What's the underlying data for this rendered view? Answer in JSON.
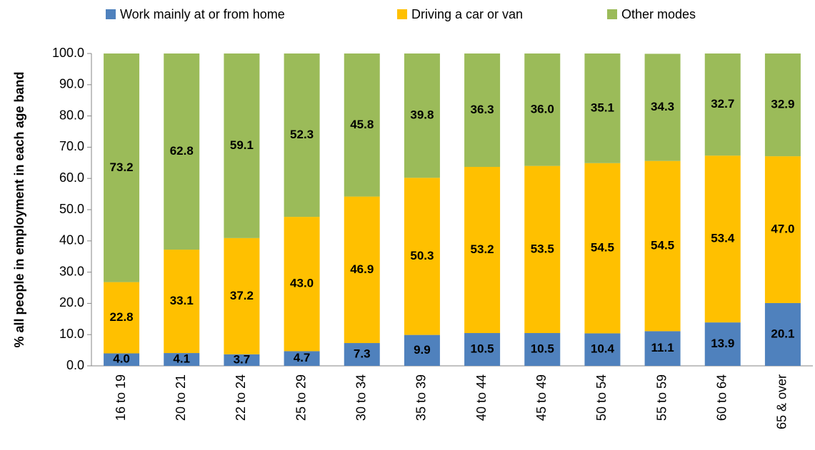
{
  "chart_data": {
    "type": "stacked_bar",
    "y_label": "% all people in employment in each age band",
    "categories": [
      "16 to 19",
      "20 to 21",
      "22 to 24",
      "25 to 29",
      "30 to 34",
      "35 to 39",
      "40 to 44",
      "45 to 49",
      "50 to 54",
      "55 to 59",
      "60 to 64",
      "65 & over"
    ],
    "series": [
      {
        "name": "Work mainly at or from home",
        "color": "#4f81bd",
        "values": [
          4.0,
          4.1,
          3.7,
          4.7,
          7.3,
          9.9,
          10.5,
          10.5,
          10.4,
          11.1,
          13.9,
          20.1
        ],
        "value_labels": [
          "4.0",
          "4.1",
          "3.7",
          "4.7",
          "7.3",
          "9.9",
          "10.5",
          "10.5",
          "10.4",
          "11.1",
          "13.9",
          "20.1"
        ]
      },
      {
        "name": "Driving a car or van",
        "color": "#ffc000",
        "values": [
          22.8,
          33.1,
          37.2,
          43.0,
          46.9,
          50.3,
          53.2,
          53.5,
          54.5,
          54.5,
          53.4,
          47.0
        ],
        "value_labels": [
          "22.8",
          "33.1",
          "37.2",
          "43.0",
          "46.9",
          "50.3",
          "53.2",
          "53.5",
          "54.5",
          "54.5",
          "53.4",
          "47.0"
        ]
      },
      {
        "name": "Other modes",
        "color": "#9bbb59",
        "values": [
          73.2,
          62.8,
          59.1,
          52.3,
          45.8,
          39.8,
          36.3,
          36.0,
          35.1,
          34.3,
          32.7,
          32.9
        ],
        "value_labels": [
          "73.2",
          "62.8",
          "59.1",
          "52.3",
          "45.8",
          "39.8",
          "36.3",
          "36.0",
          "35.1",
          "34.3",
          "32.7",
          "32.9"
        ]
      }
    ],
    "ylim": [
      0,
      100
    ],
    "yticks": [
      {
        "value": 0,
        "label": "0.0"
      },
      {
        "value": 10,
        "label": "10.0"
      },
      {
        "value": 20,
        "label": "20.0"
      },
      {
        "value": 30,
        "label": "30.0"
      },
      {
        "value": 40,
        "label": "40.0"
      },
      {
        "value": 50,
        "label": "50.0"
      },
      {
        "value": 60,
        "label": "60.0"
      },
      {
        "value": 70,
        "label": "70.0"
      },
      {
        "value": 80,
        "label": "80.0"
      },
      {
        "value": 90,
        "label": "90.0"
      },
      {
        "value": 100,
        "label": "100.0"
      }
    ],
    "grid": false,
    "legend": "top"
  }
}
